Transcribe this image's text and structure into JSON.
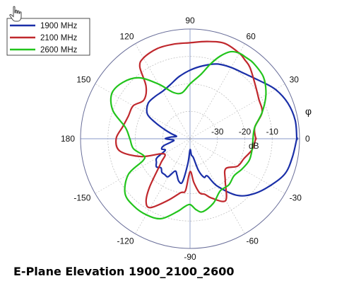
{
  "caption": "E-Plane Elevation 1900_2100_2600",
  "icons": {
    "cursor": "hand-pointer-icon"
  },
  "chart_data": {
    "type": "polar",
    "title": "",
    "angle_label": "φ",
    "radial_label": "dB",
    "angle_ticks": [
      {
        "deg": 0,
        "label": "0"
      },
      {
        "deg": 30,
        "label": "30"
      },
      {
        "deg": 60,
        "label": "60"
      },
      {
        "deg": 90,
        "label": "90"
      },
      {
        "deg": 120,
        "label": "120"
      },
      {
        "deg": 150,
        "label": "150"
      },
      {
        "deg": 180,
        "label": "180"
      },
      {
        "deg": -150,
        "label": "-150"
      },
      {
        "deg": -120,
        "label": "-120"
      },
      {
        "deg": -90,
        "label": "-90"
      },
      {
        "deg": -60,
        "label": "-60"
      },
      {
        "deg": -30,
        "label": "-30"
      }
    ],
    "radial_ticks": [
      {
        "value": -30,
        "label": "-30"
      },
      {
        "value": -20,
        "label": "-20"
      },
      {
        "value": -10,
        "label": "-10"
      }
    ],
    "r_range": [
      -40,
      0
    ],
    "grid": true,
    "legend_position": "top-left",
    "series": [
      {
        "name": "1900 MHz",
        "color": "#1a2fa8",
        "points": [
          [
            0,
            -1
          ],
          [
            10,
            -1
          ],
          [
            20,
            -2
          ],
          [
            30,
            -4
          ],
          [
            40,
            -7
          ],
          [
            50,
            -9
          ],
          [
            60,
            -10
          ],
          [
            70,
            -11
          ],
          [
            80,
            -13
          ],
          [
            90,
            -15
          ],
          [
            100,
            -17
          ],
          [
            110,
            -19
          ],
          [
            120,
            -20
          ],
          [
            130,
            -20
          ],
          [
            140,
            -20
          ],
          [
            150,
            -22
          ],
          [
            155,
            -26
          ],
          [
            160,
            -30
          ],
          [
            165,
            -33
          ],
          [
            170,
            -35
          ],
          [
            175,
            -33
          ],
          [
            180,
            -31
          ],
          [
            185,
            -34
          ],
          [
            190,
            -33
          ],
          [
            195,
            -30
          ],
          [
            200,
            -29
          ],
          [
            205,
            -30
          ],
          [
            210,
            -26
          ],
          [
            215,
            -25
          ],
          [
            220,
            -24
          ],
          [
            225,
            -25
          ],
          [
            230,
            -24
          ],
          [
            235,
            -24
          ],
          [
            240,
            -24
          ],
          [
            245,
            -27
          ],
          [
            250,
            -26
          ],
          [
            255,
            -24
          ],
          [
            260,
            -24
          ],
          [
            265,
            -31
          ],
          [
            270,
            -36
          ],
          [
            275,
            -34
          ],
          [
            280,
            -33
          ],
          [
            285,
            -28
          ],
          [
            290,
            -25
          ],
          [
            295,
            -25
          ],
          [
            300,
            -20
          ],
          [
            310,
            -13
          ],
          [
            320,
            -9
          ],
          [
            330,
            -6
          ],
          [
            340,
            -3
          ],
          [
            350,
            -2
          ],
          [
            360,
            -1
          ]
        ]
      },
      {
        "name": "2100 MHz",
        "color": "#c0282d",
        "points": [
          [
            0,
            -16
          ],
          [
            10,
            -16
          ],
          [
            20,
            -12
          ],
          [
            30,
            -11
          ],
          [
            40,
            -9
          ],
          [
            50,
            -6
          ],
          [
            55,
            -5
          ],
          [
            60,
            -4
          ],
          [
            70,
            -3
          ],
          [
            80,
            -4
          ],
          [
            90,
            -5
          ],
          [
            100,
            -5
          ],
          [
            110,
            -5
          ],
          [
            120,
            -6
          ],
          [
            125,
            -8
          ],
          [
            130,
            -15
          ],
          [
            140,
            -18
          ],
          [
            150,
            -16
          ],
          [
            160,
            -16
          ],
          [
            170,
            -15
          ],
          [
            180,
            -13
          ],
          [
            190,
            -14
          ],
          [
            200,
            -21
          ],
          [
            210,
            -29
          ],
          [
            220,
            -26
          ],
          [
            230,
            -17
          ],
          [
            235,
            -12
          ],
          [
            240,
            -11
          ],
          [
            250,
            -16
          ],
          [
            260,
            -20
          ],
          [
            265,
            -21
          ],
          [
            270,
            -28
          ],
          [
            275,
            -24
          ],
          [
            280,
            -20
          ],
          [
            285,
            -19
          ],
          [
            290,
            -17
          ],
          [
            300,
            -14
          ],
          [
            310,
            -20
          ],
          [
            320,
            -23
          ],
          [
            330,
            -20
          ],
          [
            340,
            -19
          ],
          [
            350,
            -17
          ],
          [
            360,
            -16
          ]
        ]
      },
      {
        "name": "2600 MHz",
        "color": "#22c41c",
        "points": [
          [
            0,
            -17
          ],
          [
            10,
            -16
          ],
          [
            20,
            -12
          ],
          [
            30,
            -8
          ],
          [
            40,
            -5
          ],
          [
            50,
            -4
          ],
          [
            55,
            -4
          ],
          [
            60,
            -4
          ],
          [
            65,
            -5
          ],
          [
            70,
            -8
          ],
          [
            75,
            -12
          ],
          [
            80,
            -16
          ],
          [
            90,
            -20
          ],
          [
            100,
            -23
          ],
          [
            110,
            -22
          ],
          [
            120,
            -17
          ],
          [
            130,
            -11
          ],
          [
            140,
            -8
          ],
          [
            150,
            -7
          ],
          [
            160,
            -10
          ],
          [
            170,
            -16
          ],
          [
            180,
            -18
          ],
          [
            190,
            -19
          ],
          [
            200,
            -22
          ],
          [
            205,
            -21
          ],
          [
            210,
            -14
          ],
          [
            220,
            -9
          ],
          [
            230,
            -8
          ],
          [
            240,
            -8
          ],
          [
            250,
            -9
          ],
          [
            260,
            -13
          ],
          [
            265,
            -15
          ],
          [
            270,
            -16
          ],
          [
            275,
            -14
          ],
          [
            280,
            -13
          ],
          [
            290,
            -15
          ],
          [
            300,
            -18
          ],
          [
            310,
            -18
          ],
          [
            320,
            -19
          ],
          [
            330,
            -18
          ],
          [
            340,
            -17
          ],
          [
            350,
            -17
          ],
          [
            360,
            -17
          ]
        ]
      }
    ]
  }
}
